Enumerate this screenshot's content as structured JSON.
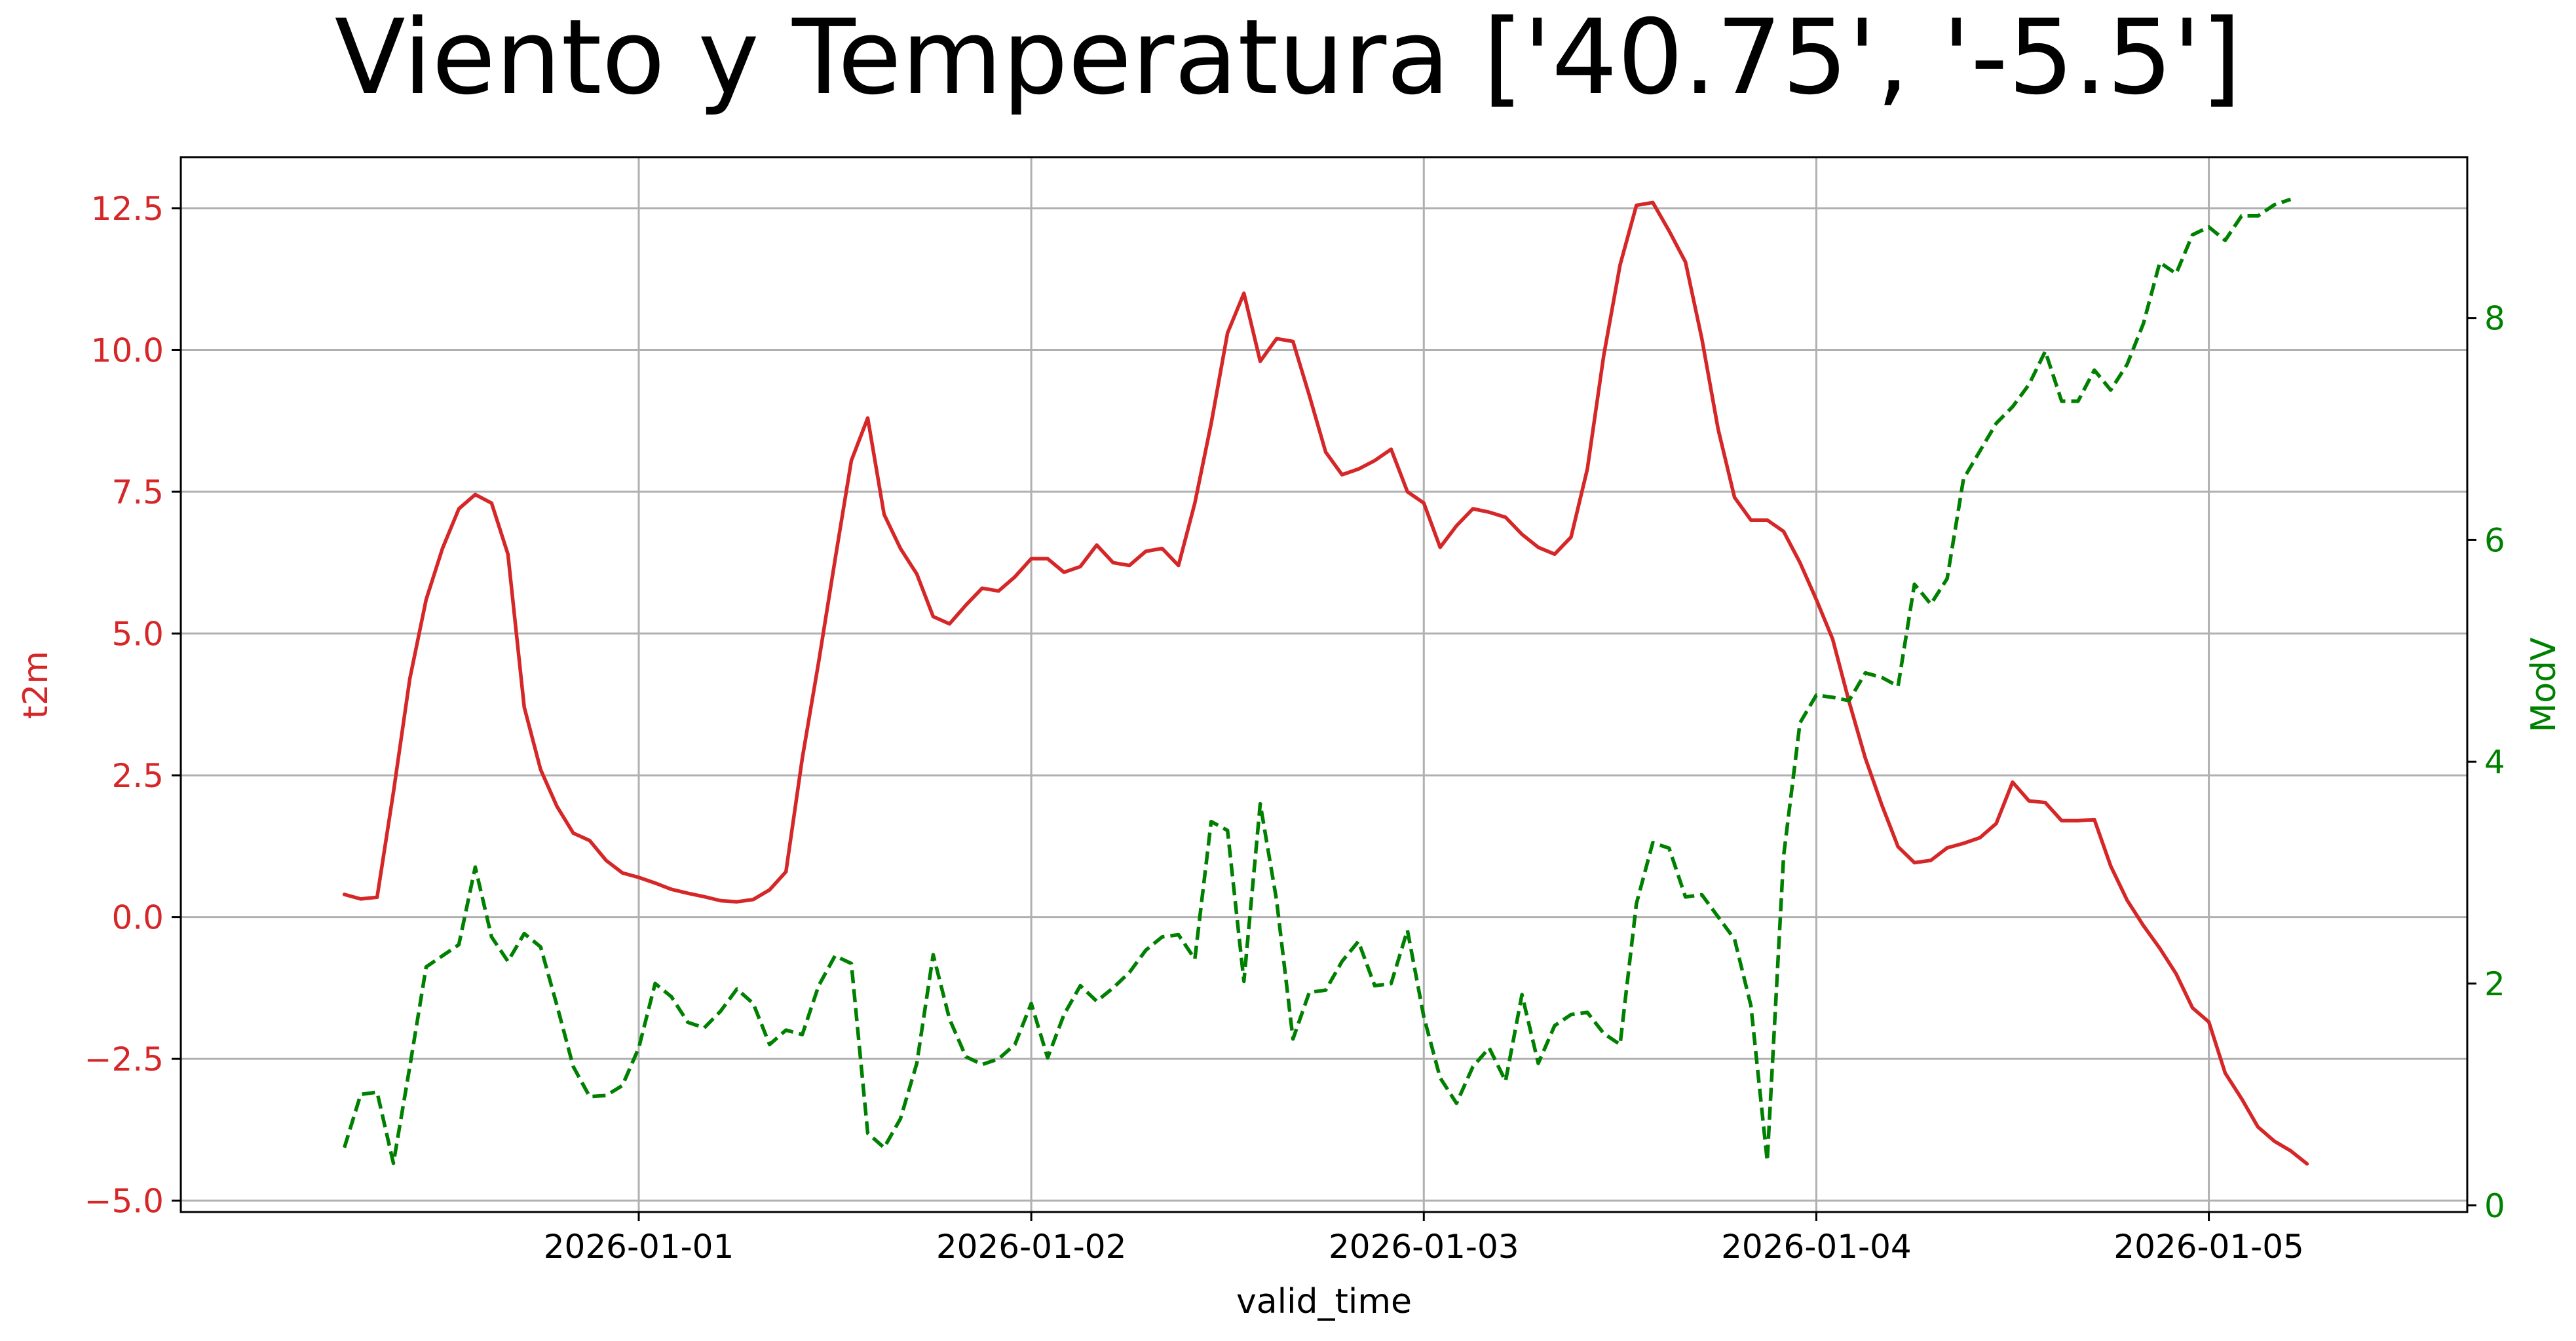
{
  "chart_data": {
    "type": "line",
    "title": "Viento y Temperatura ['40.75', '-5.5']",
    "xlabel": "valid_time",
    "x_start": "2025-12-31T06:00",
    "x_step_hours": 1,
    "x_ticks": [
      "2026-01-01",
      "2026-01-02",
      "2026-01-03",
      "2026-01-04",
      "2026-01-05"
    ],
    "grid": true,
    "y_left": {
      "label": "t2m",
      "color": "#d62728",
      "lim": [
        -5.2,
        13.4
      ],
      "ticks": [
        "12.5",
        "10.0",
        "7.5",
        "5.0",
        "2.5",
        "0.0",
        "−2.5",
        "−5.0"
      ],
      "tick_values": [
        12.5,
        10.0,
        7.5,
        5.0,
        2.5,
        0.0,
        -2.5,
        -5.0
      ]
    },
    "y_right": {
      "label": "ModV",
      "color": "#008000",
      "lim": [
        -0.06,
        9.45
      ],
      "ticks": [
        "8",
        "6",
        "4",
        "2",
        "0"
      ],
      "tick_values": [
        8,
        6,
        4,
        2,
        0
      ]
    },
    "series": [
      {
        "name": "t2m",
        "axis": "left",
        "style": "solid",
        "color": "#d62728",
        "values": [
          0.4,
          0.32,
          0.35,
          2.2,
          4.2,
          5.6,
          6.5,
          7.2,
          7.45,
          7.3,
          6.4,
          3.7,
          2.6,
          1.95,
          1.48,
          1.35,
          1.0,
          0.78,
          0.7,
          0.6,
          0.49,
          0.42,
          0.36,
          0.29,
          0.27,
          0.31,
          0.48,
          0.8,
          2.8,
          4.5,
          6.3,
          8.05,
          8.8,
          7.1,
          6.5,
          6.05,
          5.3,
          5.17,
          5.5,
          5.8,
          5.75,
          6.0,
          6.32,
          6.32,
          6.08,
          6.18,
          6.56,
          6.25,
          6.2,
          6.45,
          6.5,
          6.2,
          7.3,
          8.7,
          10.3,
          11.0,
          9.8,
          10.2,
          10.15,
          9.2,
          8.2,
          7.8,
          7.9,
          8.05,
          8.25,
          7.5,
          7.3,
          6.52,
          6.9,
          7.2,
          7.14,
          7.05,
          6.75,
          6.52,
          6.4,
          6.7,
          7.9,
          9.9,
          11.5,
          12.55,
          12.6,
          12.1,
          11.55,
          10.2,
          8.6,
          7.4,
          7.0,
          7.0,
          6.8,
          6.25,
          5.6,
          4.9,
          3.8,
          2.8,
          1.98,
          1.24,
          0.96,
          1.0,
          1.22,
          1.3,
          1.4,
          1.65,
          2.38,
          2.05,
          2.02,
          1.7,
          1.7,
          1.72,
          0.9,
          0.3,
          -0.15,
          -0.55,
          -1.0,
          -1.6,
          -1.85,
          -2.75,
          -3.2,
          -3.7,
          -3.95,
          -4.12,
          -4.35
        ]
      },
      {
        "name": "ModV",
        "axis": "right",
        "style": "dashed",
        "color": "#008000",
        "values": [
          0.52,
          1.0,
          1.02,
          0.38,
          1.25,
          2.15,
          2.25,
          2.35,
          3.05,
          2.42,
          2.2,
          2.45,
          2.33,
          1.8,
          1.25,
          0.98,
          0.99,
          1.08,
          1.42,
          2.0,
          1.88,
          1.65,
          1.6,
          1.75,
          1.95,
          1.82,
          1.45,
          1.58,
          1.54,
          1.98,
          2.25,
          2.18,
          0.65,
          0.52,
          0.78,
          1.28,
          2.26,
          1.68,
          1.34,
          1.27,
          1.32,
          1.45,
          1.82,
          1.33,
          1.72,
          1.98,
          1.84,
          1.96,
          2.1,
          2.3,
          2.42,
          2.44,
          2.22,
          3.46,
          3.38,
          2.02,
          3.62,
          2.75,
          1.5,
          1.92,
          1.94,
          2.2,
          2.38,
          1.98,
          2.0,
          2.48,
          1.7,
          1.15,
          0.92,
          1.25,
          1.42,
          1.12,
          1.9,
          1.28,
          1.62,
          1.72,
          1.74,
          1.55,
          1.45,
          2.72,
          3.27,
          3.22,
          2.78,
          2.8,
          2.6,
          2.4,
          1.8,
          0.4,
          3.15,
          4.35,
          4.6,
          4.58,
          4.55,
          4.8,
          4.76,
          4.68,
          5.6,
          5.42,
          5.65,
          6.55,
          6.8,
          7.05,
          7.2,
          7.4,
          7.7,
          7.25,
          7.25,
          7.53,
          7.35,
          7.58,
          7.95,
          8.5,
          8.4,
          8.75,
          8.82,
          8.7,
          8.92,
          8.92,
          9.02,
          9.07
        ]
      }
    ]
  }
}
